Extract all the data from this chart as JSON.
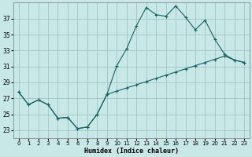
{
  "xlabel": "Humidex (Indice chaleur)",
  "xlim": [
    -0.5,
    23.5
  ],
  "ylim": [
    22.0,
    39.0
  ],
  "xticks": [
    0,
    1,
    2,
    3,
    4,
    5,
    6,
    7,
    8,
    9,
    10,
    11,
    12,
    13,
    14,
    15,
    16,
    17,
    18,
    19,
    20,
    21,
    22,
    23
  ],
  "yticks": [
    23,
    25,
    27,
    29,
    31,
    33,
    35,
    37
  ],
  "bg_color": "#c8e8e8",
  "grid_color": "#a0c4c4",
  "line_color": "#1a6060",
  "upper_x": [
    0,
    1,
    2,
    3,
    4,
    5,
    6,
    7,
    8,
    9,
    10,
    11,
    12,
    13,
    14,
    15,
    16,
    17,
    18,
    19,
    20,
    21,
    22,
    23
  ],
  "upper_y": [
    27.8,
    26.2,
    26.8,
    26.2,
    24.5,
    24.6,
    23.2,
    23.4,
    25.0,
    27.5,
    31.1,
    33.2,
    36.1,
    38.4,
    37.5,
    37.3,
    38.6,
    37.2,
    35.6,
    36.8,
    34.4,
    32.5,
    31.8,
    31.5
  ],
  "lower_x": [
    0,
    1,
    2,
    3,
    4,
    5,
    6,
    7,
    8,
    9,
    10,
    11,
    12,
    13,
    14,
    15,
    16,
    17,
    18,
    19,
    20,
    21,
    22,
    23
  ],
  "lower_y": [
    27.8,
    26.2,
    26.8,
    26.2,
    24.5,
    24.6,
    23.2,
    23.4,
    25.0,
    27.5,
    27.9,
    28.3,
    28.7,
    29.1,
    29.5,
    29.9,
    30.3,
    30.7,
    31.1,
    31.5,
    31.9,
    32.3,
    31.8,
    31.5
  ]
}
